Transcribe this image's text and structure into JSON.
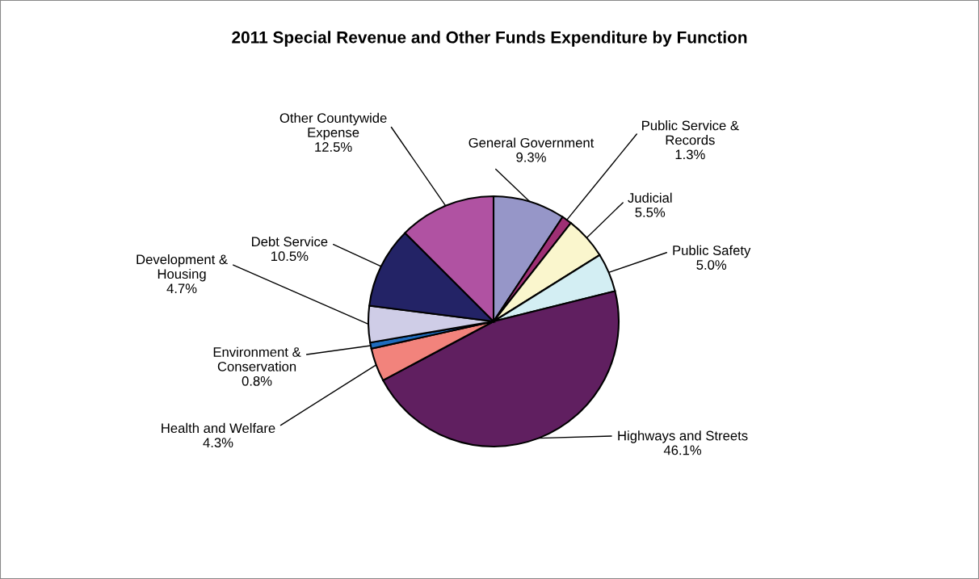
{
  "chart_data": {
    "type": "pie",
    "title": "2011 Special Revenue and Other Funds Expenditure by Function",
    "categories": [
      "General Government",
      "Public Service &\nRecords",
      "Judicial",
      "Public Safety",
      "Highways and Streets",
      "Health and Welfare",
      "Environment &\nConservation",
      "Development &\nHousing",
      "Debt Service",
      "Other Countywide\nExpense"
    ],
    "values": [
      9.3,
      1.3,
      5.5,
      5.0,
      46.1,
      4.3,
      0.8,
      4.7,
      10.5,
      12.5
    ],
    "value_labels": [
      "9.3%",
      "1.3%",
      "5.5%",
      "5.0%",
      "46.1%",
      "4.3%",
      "0.8%",
      "4.7%",
      "10.5%",
      "12.5%"
    ],
    "colors": [
      "#9696c8",
      "#9e2f74",
      "#faf6cd",
      "#d3eef3",
      "#601f60",
      "#f2837c",
      "#1f6cbd",
      "#cfcde7",
      "#232366",
      "#b052a2"
    ],
    "legend": false
  }
}
